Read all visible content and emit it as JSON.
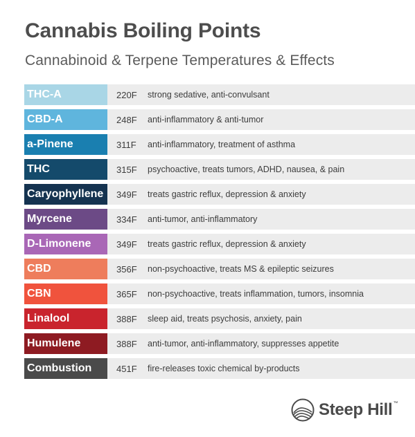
{
  "header": {
    "title": "Cannabis Boiling Points",
    "subtitle": "Cannabinoid & Terpene Temperatures & Effects"
  },
  "rows": [
    {
      "name": "THC-A",
      "temp": "220F",
      "effect": "strong sedative, anti-convulsant",
      "color": "#a9d6e6"
    },
    {
      "name": "CBD-A",
      "temp": "248F",
      "effect": "anti-inflammatory & anti-tumor",
      "color": "#5fb5dd"
    },
    {
      "name": "a-Pinene",
      "temp": "311F",
      "effect": "anti-inflammatory, treatment of asthma",
      "color": "#1a7fb0"
    },
    {
      "name": "THC",
      "temp": "315F",
      "effect": "psychoactive, treats tumors, ADHD, nausea, & pain",
      "color": "#144a6b"
    },
    {
      "name": "Caryophyllene",
      "temp": "349F",
      "effect": "treats gastric reflux, depression & anxiety",
      "color": "#153350"
    },
    {
      "name": "Myrcene",
      "temp": "334F",
      "effect": "anti-tumor, anti-inflammatory",
      "color": "#6c4a86"
    },
    {
      "name": "D-Limonene",
      "temp": "349F",
      "effect": "treats gastric reflux, depression & anxiety",
      "color": "#a967b6"
    },
    {
      "name": "CBD",
      "temp": "356F",
      "effect": "non-psychoactive, treats MS & epileptic seizures",
      "color": "#ee7d5c"
    },
    {
      "name": "CBN",
      "temp": "365F",
      "effect": "non-psychoactive, treats inflammation, tumors, insomnia",
      "color": "#f0533d"
    },
    {
      "name": "Linalool",
      "temp": "388F",
      "effect": "sleep aid, treats psychosis, anxiety, pain",
      "color": "#c9242d"
    },
    {
      "name": "Humulene",
      "temp": "388F",
      "effect": "anti-tumor, anti-inflammatory, suppresses appetite",
      "color": "#8e1b22"
    },
    {
      "name": "Combustion",
      "temp": "451F",
      "effect": "fire-releases toxic chemical by-products",
      "color": "#4a4a4a"
    }
  ],
  "logo": {
    "text": "Steep Hill",
    "tm": "™",
    "icon": "mountain-circle-icon"
  }
}
